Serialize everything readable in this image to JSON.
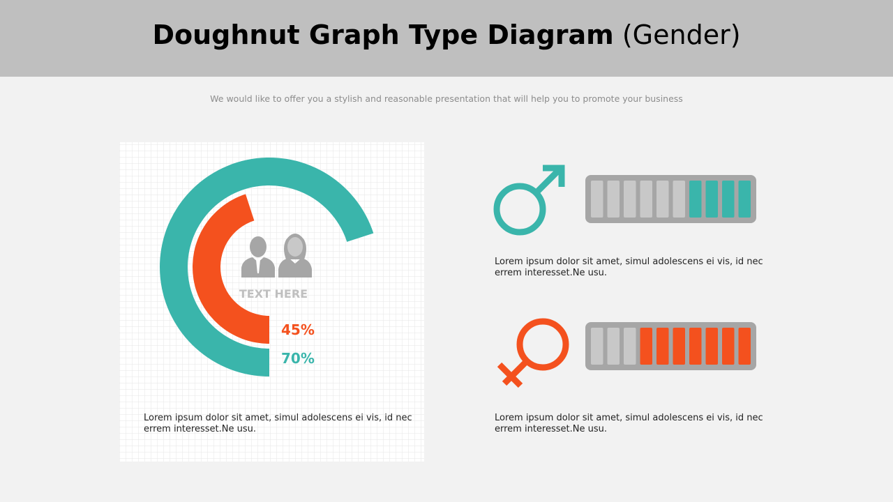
{
  "header": {
    "title": "Doughnut Graph Type Diagram",
    "title_suffix": "(Gender)",
    "subtitle": "We would like to offer you a stylish and reasonable presentation that will help you to promote your business"
  },
  "doughnut": {
    "type": "doughnut",
    "center_label": "TEXT HERE",
    "rings": [
      {
        "value": 45,
        "value_label": "45%",
        "color": "#f4511e"
      },
      {
        "value": 70,
        "value_label": "70%",
        "color": "#3ab5ab"
      }
    ],
    "caption": "Lorem ipsum dolor sit amet, simul adolescens ei vis, id nec errem interesset.Ne usu."
  },
  "gauges": [
    {
      "symbol": "male",
      "segments": 10,
      "filled": 4,
      "color": "#3ab5ab",
      "caption": "Lorem ipsum dolor sit amet, simul adolescens ei vis, id nec errem interesset.Ne usu."
    },
    {
      "symbol": "female",
      "segments": 10,
      "filled": 7,
      "color": "#f4511e",
      "caption": "Lorem ipsum dolor sit amet, simul adolescens ei vis, id nec errem interesset.Ne usu."
    }
  ]
}
